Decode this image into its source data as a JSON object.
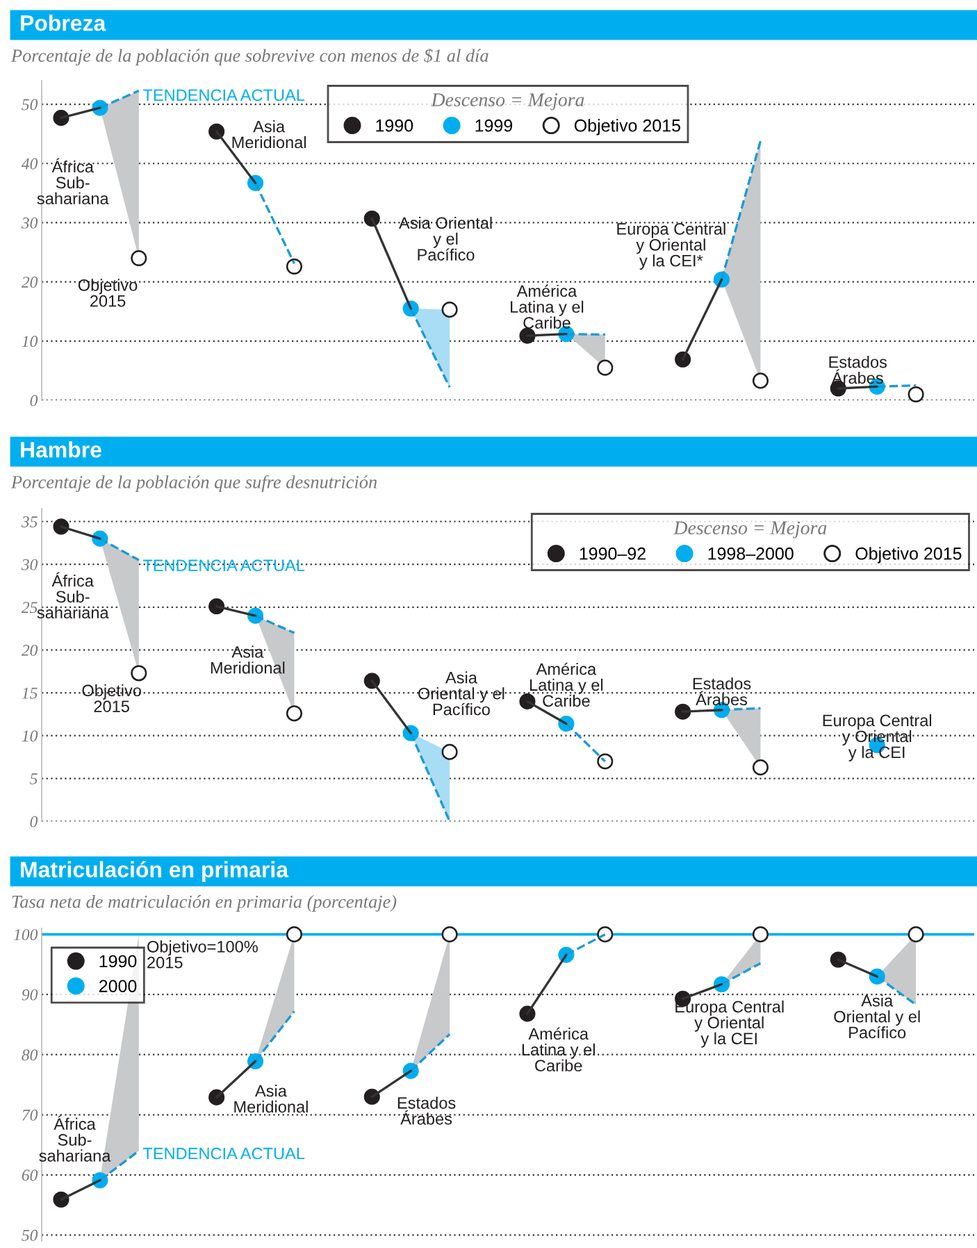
{
  "chart_data": [
    {
      "type": "line",
      "title": "Pobreza",
      "subtitle": "Porcentaje de la población que sobrevive con menos de $1 al día",
      "legend_title": "Descenso = Mejora",
      "legend": "top",
      "grid": "y",
      "tick_labels": "y",
      "categories": [
        null,
        null,
        null,
        null,
        null,
        null,
        null,
        null,
        null,
        null,
        null,
        null,
        null,
        null,
        null,
        null,
        null,
        null,
        null,
        null,
        null,
        null,
        null,
        null
      ],
      "ylim": [
        0,
        54
      ],
      "yticks": [
        0,
        10,
        20,
        30,
        40,
        50
      ],
      "series": [
        {
          "color": "#1a9ad6",
          "line_style": "dashed",
          "marker": "none",
          "values": [
            null,
            49.4,
            52.3,
            null,
            null,
            36.7,
            23.1,
            null,
            null,
            null,
            null,
            null,
            null,
            11.2,
            11.1,
            null,
            null,
            20.4,
            43.8,
            null,
            null,
            2.3,
            2.5,
            null
          ],
          "lower": [
            null,
            49.4,
            24.0,
            null,
            null,
            null,
            null,
            null,
            null,
            null,
            null,
            null,
            null,
            11.2,
            5.5,
            null,
            null,
            20.4,
            3.3,
            null,
            null,
            null,
            null,
            null
          ],
          "upper": [
            null,
            49.4,
            52.3,
            null,
            null,
            null,
            null,
            null,
            null,
            null,
            null,
            null,
            null,
            11.2,
            11.1,
            null,
            null,
            20.4,
            43.8,
            null,
            null,
            null,
            null,
            null
          ]
        },
        {
          "color": "#1a9ad6",
          "line_style": "dashed",
          "marker": "none",
          "values": [
            null,
            null,
            null,
            null,
            null,
            null,
            null,
            null,
            null,
            15.5,
            2.2,
            null,
            null,
            null,
            null,
            null,
            null,
            null,
            null,
            null,
            null,
            null,
            null,
            null
          ],
          "lower": [
            null,
            null,
            null,
            null,
            null,
            null,
            null,
            null,
            null,
            15.5,
            2.2,
            null,
            null,
            null,
            null,
            null,
            null,
            null,
            null,
            null,
            null,
            null,
            null,
            null
          ],
          "upper": [
            null,
            null,
            null,
            null,
            null,
            null,
            null,
            null,
            null,
            15.5,
            15.3,
            null,
            null,
            null,
            null,
            null,
            null,
            null,
            null,
            null,
            null,
            null,
            null,
            null
          ]
        },
        {
          "color": "#333333",
          "line_style": "solid",
          "marker": "none",
          "values": [
            47.7,
            49.4,
            null,
            null,
            45.4,
            36.7,
            null,
            null,
            30.7,
            15.5,
            null,
            null,
            10.9,
            11.2,
            null,
            null,
            6.9,
            20.4,
            null,
            null,
            2.0,
            2.3,
            null,
            null
          ]
        },
        {
          "type": "scatter",
          "name": "1990",
          "color": "#231f20",
          "marker": "circle",
          "values": [
            47.7,
            null,
            null,
            null,
            45.4,
            null,
            null,
            null,
            30.7,
            null,
            null,
            null,
            10.9,
            null,
            null,
            null,
            6.9,
            null,
            null,
            null,
            2.0,
            null,
            null,
            null
          ]
        },
        {
          "type": "scatter",
          "name": "1999",
          "color": "#00aeef",
          "marker": "circle",
          "values": [
            null,
            49.4,
            null,
            null,
            null,
            36.7,
            null,
            null,
            null,
            15.5,
            null,
            null,
            null,
            11.2,
            null,
            null,
            null,
            20.4,
            null,
            null,
            null,
            2.3,
            null,
            null
          ]
        },
        {
          "type": "scatter",
          "name": "Objetivo 2015",
          "color": "#ffffff",
          "marker": "circle",
          "values": [
            null,
            null,
            24.0,
            null,
            null,
            null,
            22.6,
            null,
            null,
            null,
            15.3,
            null,
            null,
            null,
            5.5,
            null,
            null,
            null,
            3.3,
            null,
            null,
            null,
            1.0,
            null
          ]
        }
      ],
      "annotations": [
        "TENDENCIA ACTUAL",
        "África\nSub-\nsahariana",
        "Objetivo\n2015",
        "Asia\nMeridional",
        "Asia Oriental\ny el\nPacífico",
        "América\nLatina y el\nCaribe",
        "Europa Central\ny Oriental\ny la CEI*",
        "Estados\nÁrabes"
      ]
    },
    {
      "type": "line",
      "title": "Hambre",
      "subtitle": "Porcentaje de la población que sufre desnutrición",
      "legend_title": "Descenso = Mejora",
      "legend": "top right",
      "grid": "y",
      "tick_labels": "y",
      "categories": [
        null,
        null,
        null,
        null,
        null,
        null,
        null,
        null,
        null,
        null,
        null,
        null,
        null,
        null,
        null,
        null,
        null,
        null,
        null,
        null,
        null,
        null,
        null,
        null
      ],
      "ylim": [
        0,
        36.5
      ],
      "yticks": [
        0,
        5,
        10,
        15,
        20,
        25,
        30,
        35
      ],
      "series": [
        {
          "color": "#1a9ad6",
          "line_style": "dashed",
          "marker": "none",
          "values": [
            null,
            33.0,
            30.5,
            null,
            null,
            24.0,
            22.0,
            null,
            null,
            null,
            null,
            null,
            null,
            11.4,
            7.0,
            null,
            null,
            13.0,
            13.2,
            null,
            null,
            null,
            null,
            null
          ],
          "lower": [
            null,
            33.0,
            17.3,
            null,
            null,
            24.0,
            12.6,
            null,
            null,
            null,
            null,
            null,
            null,
            null,
            null,
            null,
            null,
            13.0,
            6.3,
            null,
            null,
            null,
            null,
            null
          ],
          "upper": [
            null,
            33.0,
            30.5,
            null,
            null,
            24.0,
            22.0,
            null,
            null,
            null,
            null,
            null,
            null,
            null,
            null,
            null,
            null,
            13.0,
            13.2,
            null,
            null,
            null,
            null,
            null
          ]
        },
        {
          "color": "#1a9ad6",
          "line_style": "dashed",
          "marker": "none",
          "values": [
            null,
            null,
            null,
            null,
            null,
            null,
            null,
            null,
            null,
            10.3,
            0,
            null,
            null,
            null,
            null,
            null,
            null,
            null,
            null,
            null,
            null,
            null,
            null,
            null
          ],
          "lower": [
            null,
            null,
            null,
            null,
            null,
            null,
            null,
            null,
            null,
            10.3,
            0,
            null,
            null,
            null,
            null,
            null,
            null,
            null,
            null,
            null,
            null,
            null,
            null,
            null
          ],
          "upper": [
            null,
            null,
            null,
            null,
            null,
            null,
            null,
            null,
            null,
            10.3,
            8.1,
            null,
            null,
            null,
            null,
            null,
            null,
            null,
            null,
            null,
            null,
            null,
            null,
            null
          ]
        },
        {
          "color": "#333333",
          "line_style": "solid",
          "marker": "none",
          "values": [
            34.4,
            33.0,
            null,
            null,
            25.1,
            24.0,
            null,
            null,
            16.4,
            10.3,
            null,
            null,
            14.0,
            11.4,
            null,
            null,
            12.8,
            13.0,
            null,
            null,
            null,
            null,
            null,
            null
          ]
        },
        {
          "type": "scatter",
          "name": "1990–92",
          "color": "#231f20",
          "marker": "circle",
          "values": [
            34.4,
            null,
            null,
            null,
            25.1,
            null,
            null,
            null,
            16.4,
            null,
            null,
            null,
            14.0,
            null,
            null,
            null,
            12.8,
            null,
            null,
            null,
            null,
            null,
            null,
            null
          ]
        },
        {
          "type": "scatter",
          "name": "1998–2000",
          "color": "#00aeef",
          "marker": "circle",
          "values": [
            null,
            33.0,
            null,
            null,
            null,
            24.0,
            null,
            null,
            null,
            10.3,
            null,
            null,
            null,
            11.4,
            null,
            null,
            null,
            13.0,
            null,
            null,
            null,
            8.9,
            null,
            null
          ]
        },
        {
          "type": "scatter",
          "name": "Objetivo 2015",
          "color": "#ffffff",
          "marker": "circle",
          "values": [
            null,
            null,
            17.3,
            null,
            null,
            null,
            12.6,
            null,
            null,
            null,
            8.1,
            null,
            null,
            null,
            7.0,
            null,
            null,
            null,
            6.3,
            null,
            null,
            null,
            null,
            null
          ]
        }
      ],
      "annotations": [
        "TENDENCIA ACTUAL",
        "África\nSub-\nsahariana",
        "Objetivo\n2015",
        "Asia\nMeridional",
        "Asia\nOriental y el\nPacífico",
        "América\nLatina y el\nCaribe",
        "Estados\nÁrabes",
        "Europa Central\ny Oriental\ny la CEI"
      ]
    },
    {
      "type": "line",
      "title": "Matriculación en primaria",
      "subtitle": "Tasa neta de matriculación en primaria (porcentaje)",
      "legend": "top left",
      "grid": "y",
      "tick_labels": "y",
      "categories": [
        null,
        null,
        null,
        null,
        null,
        null,
        null,
        null,
        null,
        null,
        null,
        null,
        null,
        null,
        null,
        null,
        null,
        null,
        null,
        null,
        null,
        null,
        null,
        null
      ],
      "ylim": [
        49,
        101
      ],
      "yticks": [
        50,
        60,
        70,
        80,
        90,
        100
      ],
      "ref_lines": [
        {
          "axis": "y",
          "value": 100,
          "color": "#00aeef",
          "line_style": "solid"
        }
      ],
      "series": [
        {
          "color": "#1a9ad6",
          "line_style": "dashed",
          "marker": "none",
          "values": [
            null,
            59.1,
            64.0,
            null,
            null,
            78.9,
            87.2,
            null,
            null,
            77.3,
            83.4,
            null,
            null,
            96.6,
            100,
            null,
            null,
            91.7,
            95.2,
            null,
            null,
            93.0,
            88.3,
            null
          ],
          "lower": [
            null,
            59.1,
            64.0,
            null,
            null,
            78.9,
            87.2,
            null,
            null,
            77.3,
            83.4,
            null,
            null,
            null,
            null,
            null,
            null,
            91.7,
            95.2,
            null,
            null,
            93.0,
            88.3,
            null
          ],
          "upper": [
            null,
            59.1,
            100,
            null,
            null,
            78.9,
            100,
            null,
            null,
            77.3,
            100,
            null,
            null,
            null,
            null,
            null,
            null,
            91.7,
            100,
            null,
            null,
            93.0,
            100,
            null
          ]
        },
        {
          "color": "#333333",
          "line_style": "solid",
          "marker": "none",
          "values": [
            55.9,
            59.1,
            null,
            null,
            72.9,
            78.9,
            null,
            null,
            73.0,
            77.3,
            null,
            null,
            86.8,
            96.6,
            null,
            null,
            89.3,
            91.7,
            null,
            null,
            95.8,
            93.0,
            null,
            null
          ]
        },
        {
          "type": "scatter",
          "name": "1990",
          "color": "#231f20",
          "marker": "circle",
          "values": [
            55.9,
            null,
            null,
            null,
            72.9,
            null,
            null,
            null,
            73.0,
            null,
            null,
            null,
            86.8,
            null,
            null,
            null,
            89.3,
            null,
            null,
            null,
            95.8,
            null,
            null,
            null
          ]
        },
        {
          "type": "scatter",
          "name": "2000",
          "color": "#00aeef",
          "marker": "circle",
          "values": [
            null,
            59.1,
            null,
            null,
            null,
            78.9,
            null,
            null,
            null,
            77.3,
            null,
            null,
            null,
            96.6,
            null,
            null,
            null,
            91.7,
            null,
            null,
            null,
            93.0,
            null,
            null
          ]
        },
        {
          "type": "scatter",
          "color": "#ffffff",
          "marker": "circle",
          "values": [
            null,
            null,
            null,
            null,
            null,
            null,
            100,
            null,
            null,
            null,
            100,
            null,
            null,
            null,
            100,
            null,
            null,
            null,
            100,
            null,
            null,
            null,
            100,
            null
          ]
        }
      ],
      "annotations": [
        "TENDENCIA ACTUAL",
        "Objetivo=100%\n2015",
        "África\nSub-\nsahariana",
        "Asia\nMeridional",
        "Estados\nÁrabes",
        "América\nLatina y el\nCaribe",
        "Europa Central\ny Oriental\ny la CEI",
        "Asia\nOriental y el\nPacífico"
      ]
    }
  ]
}
